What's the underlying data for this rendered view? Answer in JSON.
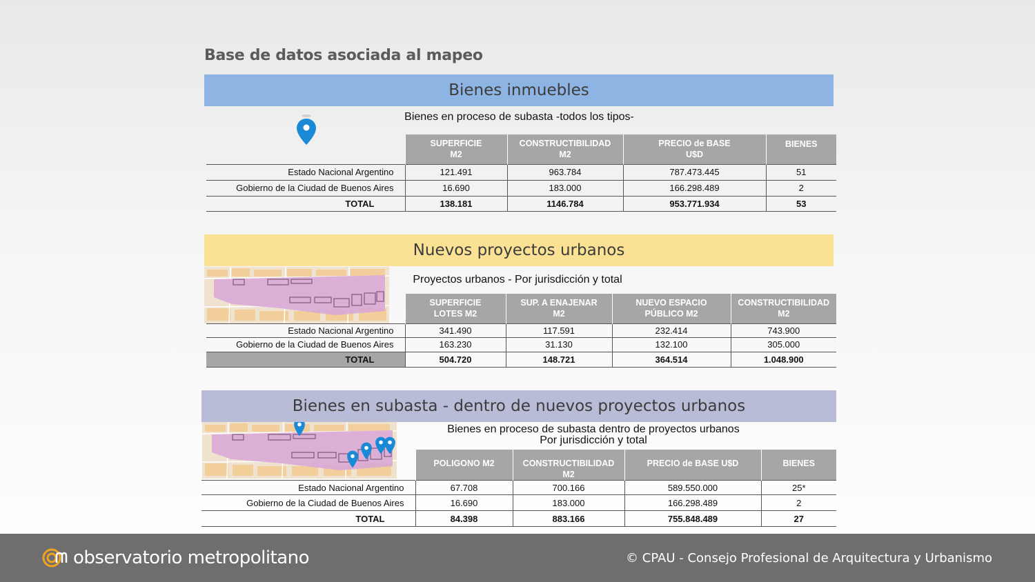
{
  "page_title": "Base de datos asociada al mapeo",
  "colors": {
    "band_1": "#8eb4e3",
    "band_2": "#fbe194",
    "band_3": "#b8bcd6",
    "header_gray": "#a6a6a6",
    "pin_blue": "#1a8ad6",
    "footer": "#6e6e6e",
    "logo_orange": "#f2a322"
  },
  "sections": [
    {
      "band": "Bienes inmuebles",
      "subtitle": [
        "Bienes en proceso de subasta -todos los tipos-"
      ],
      "icon": "location-pin-icon",
      "headers": [
        [
          "SUPERFICIE",
          "M2"
        ],
        [
          "CONSTRUCTIBILIDAD",
          "M2"
        ],
        [
          "PRECIO de BASE",
          "U$D"
        ],
        [
          "BIENES",
          ""
        ]
      ],
      "rows": [
        {
          "label": "Estado Nacional Argentino",
          "values": [
            "121.491",
            "963.784",
            "787.473.445",
            "51"
          ]
        },
        {
          "label": "Gobierno de la Ciudad de Buenos Aires",
          "values": [
            "16.690",
            "183.000",
            "166.298.489",
            "2"
          ]
        },
        {
          "label": "TOTAL",
          "values": [
            "138.181",
            "1146.784",
            "953.771.934",
            "53"
          ]
        }
      ]
    },
    {
      "band": "Nuevos proyectos urbanos",
      "subtitle": [
        "Proyectos urbanos - Por jurisdicción y total"
      ],
      "icon": "urban-map-thumbnail",
      "headers": [
        [
          "SUPERFICIE",
          "LOTES M2"
        ],
        [
          "SUP. A ENAJENAR",
          "M2"
        ],
        [
          "NUEVO ESPACIO",
          "PÚBLICO M2"
        ],
        [
          "CONSTRUCTIBILIDAD",
          "M2"
        ]
      ],
      "rows": [
        {
          "label": "Estado Nacional Argentino",
          "values": [
            "341.490",
            "117.591",
            "232.414",
            "743.900"
          ]
        },
        {
          "label": "Gobierno de la Ciudad de Buenos Aires",
          "values": [
            "163.230",
            "31.130",
            "132.100",
            "305.000"
          ]
        },
        {
          "label": "TOTAL",
          "values": [
            "504.720",
            "148.721",
            "364.514",
            "1.048.900"
          ]
        }
      ]
    },
    {
      "band": "Bienes en subasta - dentro de nuevos proyectos urbanos",
      "subtitle": [
        "Bienes en proceso de subasta dentro de proyectos urbanos",
        "Por jurisdicción y total"
      ],
      "icon": "urban-map-with-pins-thumbnail",
      "headers": [
        [
          "POLIGONO M2",
          ""
        ],
        [
          "CONSTRUCTIBILIDAD",
          "M2"
        ],
        [
          "PRECIO de BASE U$D",
          ""
        ],
        [
          "BIENES",
          ""
        ]
      ],
      "rows": [
        {
          "label": "Estado Nacional Argentino",
          "values": [
            "67.708",
            "700.166",
            "589.550.000",
            "25*"
          ]
        },
        {
          "label": "Gobierno de la Ciudad de Buenos Aires",
          "values": [
            "16.690",
            "183.000",
            "166.298.489",
            "2"
          ]
        },
        {
          "label": "TOTAL",
          "values": [
            "84.398",
            "883.166",
            "755.848.489",
            "27"
          ]
        }
      ]
    }
  ],
  "footer": {
    "logo_icon": "observatorio-logo-icon",
    "brand": "observatorio metropolitano",
    "copyright": "© CPAU - Consejo Profesional de Arquitectura y Urbanismo"
  }
}
